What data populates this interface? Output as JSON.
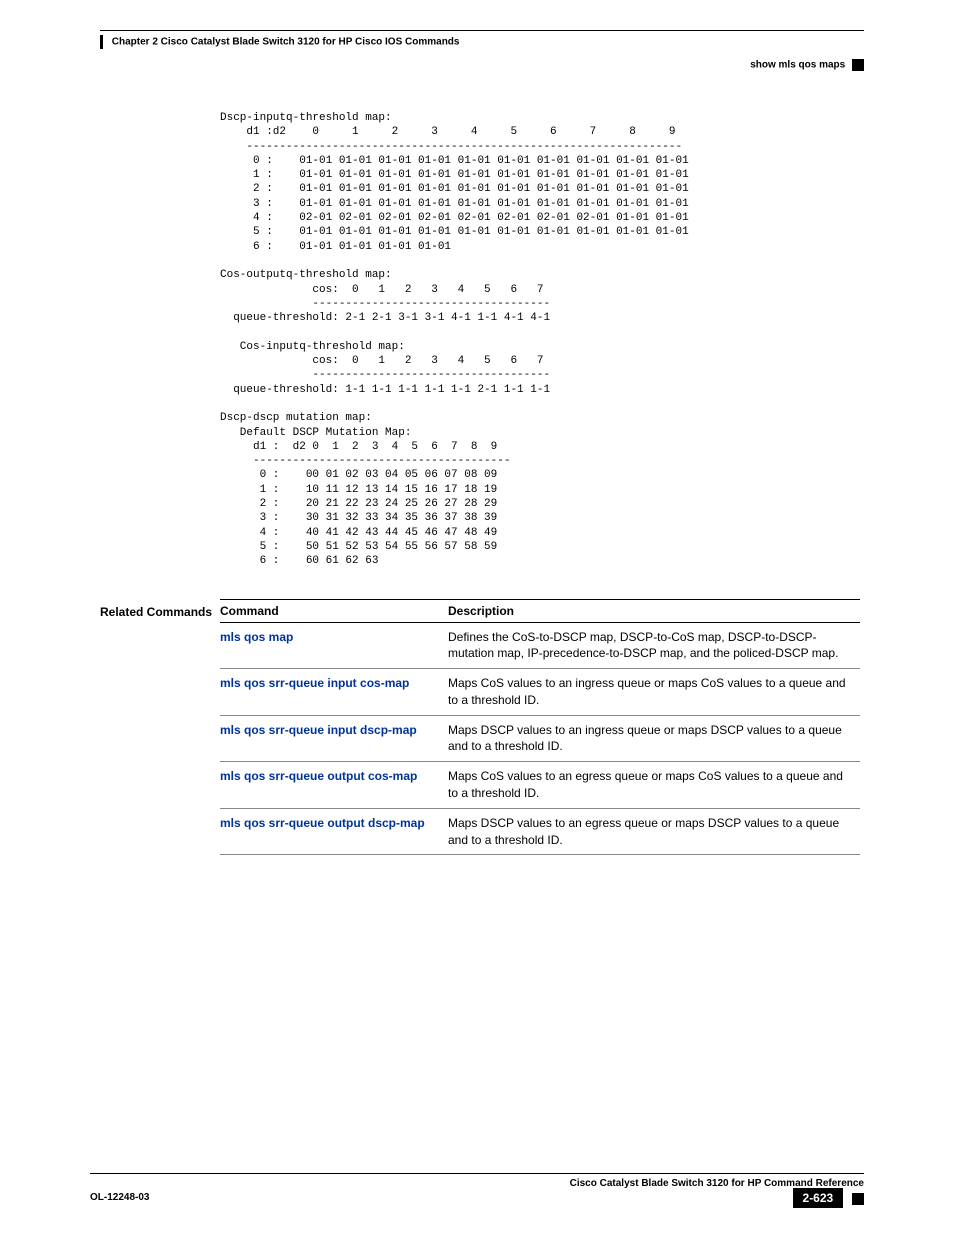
{
  "header": {
    "chapter": "Chapter 2  Cisco Catalyst Blade Switch 3120 for HP Cisco IOS Commands",
    "section": "show mls qos maps"
  },
  "terminal_output": "Dscp-inputq-threshold map:\n    d1 :d2    0     1     2     3     4     5     6     7     8     9\n    ------------------------------------------------------------------\n     0 :    01-01 01-01 01-01 01-01 01-01 01-01 01-01 01-01 01-01 01-01\n     1 :    01-01 01-01 01-01 01-01 01-01 01-01 01-01 01-01 01-01 01-01\n     2 :    01-01 01-01 01-01 01-01 01-01 01-01 01-01 01-01 01-01 01-01\n     3 :    01-01 01-01 01-01 01-01 01-01 01-01 01-01 01-01 01-01 01-01\n     4 :    02-01 02-01 02-01 02-01 02-01 02-01 02-01 02-01 01-01 01-01\n     5 :    01-01 01-01 01-01 01-01 01-01 01-01 01-01 01-01 01-01 01-01\n     6 :    01-01 01-01 01-01 01-01\n\nCos-outputq-threshold map:\n              cos:  0   1   2   3   4   5   6   7\n              ------------------------------------\n  queue-threshold: 2-1 2-1 3-1 3-1 4-1 1-1 4-1 4-1\n\n   Cos-inputq-threshold map:\n              cos:  0   1   2   3   4   5   6   7\n              ------------------------------------\n  queue-threshold: 1-1 1-1 1-1 1-1 1-1 2-1 1-1 1-1\n\nDscp-dscp mutation map:\n   Default DSCP Mutation Map:\n     d1 :  d2 0  1  2  3  4  5  6  7  8  9\n     ---------------------------------------\n      0 :    00 01 02 03 04 05 06 07 08 09\n      1 :    10 11 12 13 14 15 16 17 18 19\n      2 :    20 21 22 23 24 25 26 27 28 29\n      3 :    30 31 32 33 34 35 36 37 38 39\n      4 :    40 41 42 43 44 45 46 47 48 49\n      5 :    50 51 52 53 54 55 56 57 58 59\n      6 :    60 61 62 63",
  "related": {
    "label": "Related Commands",
    "headers": {
      "cmd": "Command",
      "desc": "Description"
    },
    "rows": [
      {
        "cmd": "mls qos map",
        "desc": "Defines the CoS-to-DSCP map, DSCP-to-CoS map, DSCP-to-DSCP-mutation map, IP-precedence-to-DSCP map, and the policed-DSCP map."
      },
      {
        "cmd": "mls qos srr-queue input cos-map",
        "desc": "Maps CoS values to an ingress queue or maps CoS values to a queue and to a threshold ID."
      },
      {
        "cmd": "mls qos srr-queue input dscp-map",
        "desc": "Maps DSCP values to an ingress queue or maps DSCP values to a queue and to a threshold ID."
      },
      {
        "cmd": "mls qos srr-queue output cos-map",
        "desc": "Maps CoS values to an egress queue or maps CoS values to a queue and to a threshold ID."
      },
      {
        "cmd": "mls qos srr-queue output dscp-map",
        "desc": "Maps DSCP values to an egress queue or maps DSCP values to a queue and to a threshold ID."
      }
    ]
  },
  "footer": {
    "title": "Cisco Catalyst Blade Switch 3120 for HP Command Reference",
    "doc": "OL-12248-03",
    "page": "2-623"
  },
  "style": {
    "link_color": "#003399",
    "text_color": "#000000",
    "background": "#ffffff",
    "mono_font": "Courier New",
    "body_font": "Arial",
    "pre_fontsize": 11,
    "table_fontsize": 12,
    "header_fontsize": 10
  }
}
